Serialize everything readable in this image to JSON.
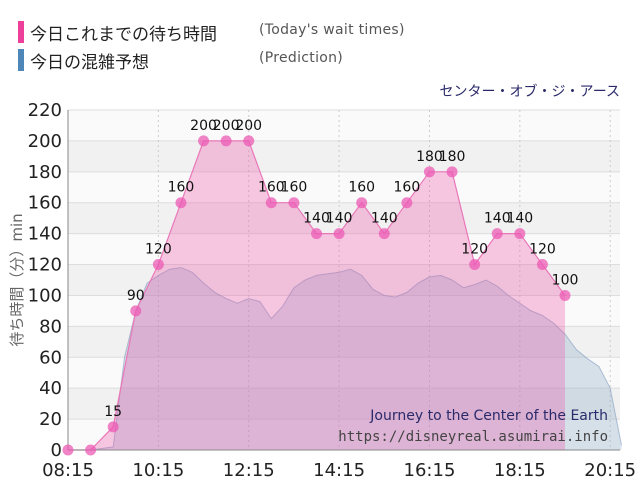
{
  "legend": [
    {
      "jp": "今日これまでの待ち時間",
      "en": "(Today's wait times)",
      "color": "#ee3f9b"
    },
    {
      "jp": "今日の混雑予想",
      "en": "(Prediction)",
      "color": "#4f86b8"
    }
  ],
  "chart_data": {
    "type": "area",
    "title": "センター・オブ・ジ・アース",
    "ylabel": "待ち時間（分）min",
    "ylim": [
      0,
      220
    ],
    "yticks": [
      0,
      20,
      40,
      60,
      80,
      100,
      120,
      140,
      160,
      180,
      200,
      220
    ],
    "xlim_minutes": [
      495,
      1228
    ],
    "xticks": [
      "08:15",
      "10:15",
      "12:15",
      "14:15",
      "16:15",
      "18:15",
      "20:15"
    ],
    "watermark": [
      "Journey to the Center of the Earth",
      "https://disneyreal.asumirai.info"
    ],
    "series": [
      {
        "name": "今日これまでの待ち時間",
        "color": "#ee3f9b",
        "x": [
          "08:15",
          "08:45",
          "09:15",
          "09:45",
          "10:15",
          "10:45",
          "11:15",
          "11:45",
          "12:15",
          "12:45",
          "13:15",
          "13:45",
          "14:15",
          "14:45",
          "15:15",
          "15:45",
          "16:15",
          "16:45",
          "17:15",
          "17:45",
          "18:15",
          "18:45",
          "19:15"
        ],
        "values": [
          0,
          0,
          15,
          90,
          120,
          160,
          200,
          200,
          200,
          160,
          160,
          140,
          140,
          160,
          140,
          160,
          180,
          180,
          120,
          140,
          140,
          120,
          100
        ]
      },
      {
        "name": "今日の混雑予想",
        "color": "#4f86b8",
        "x": [
          "08:15",
          "08:45",
          "09:15",
          "09:30",
          "09:45",
          "10:00",
          "10:15",
          "10:30",
          "10:45",
          "11:00",
          "11:15",
          "11:30",
          "11:45",
          "12:00",
          "12:15",
          "12:30",
          "12:45",
          "13:00",
          "13:15",
          "13:30",
          "13:45",
          "14:00",
          "14:15",
          "14:30",
          "14:45",
          "15:00",
          "15:15",
          "15:30",
          "15:45",
          "16:00",
          "16:15",
          "16:30",
          "16:45",
          "17:00",
          "17:15",
          "17:30",
          "17:45",
          "18:00",
          "18:15",
          "18:30",
          "18:45",
          "19:00",
          "19:15",
          "19:30",
          "19:45",
          "20:00",
          "20:15",
          "20:30"
        ],
        "values": [
          0,
          0,
          2,
          60,
          90,
          108,
          113,
          117,
          118,
          115,
          108,
          102,
          98,
          95,
          98,
          96,
          85,
          93,
          105,
          110,
          113,
          114,
          115,
          117,
          113,
          104,
          100,
          99,
          102,
          108,
          112,
          113,
          110,
          105,
          107,
          110,
          106,
          100,
          95,
          90,
          87,
          82,
          75,
          65,
          59,
          54,
          40,
          3
        ]
      }
    ]
  }
}
